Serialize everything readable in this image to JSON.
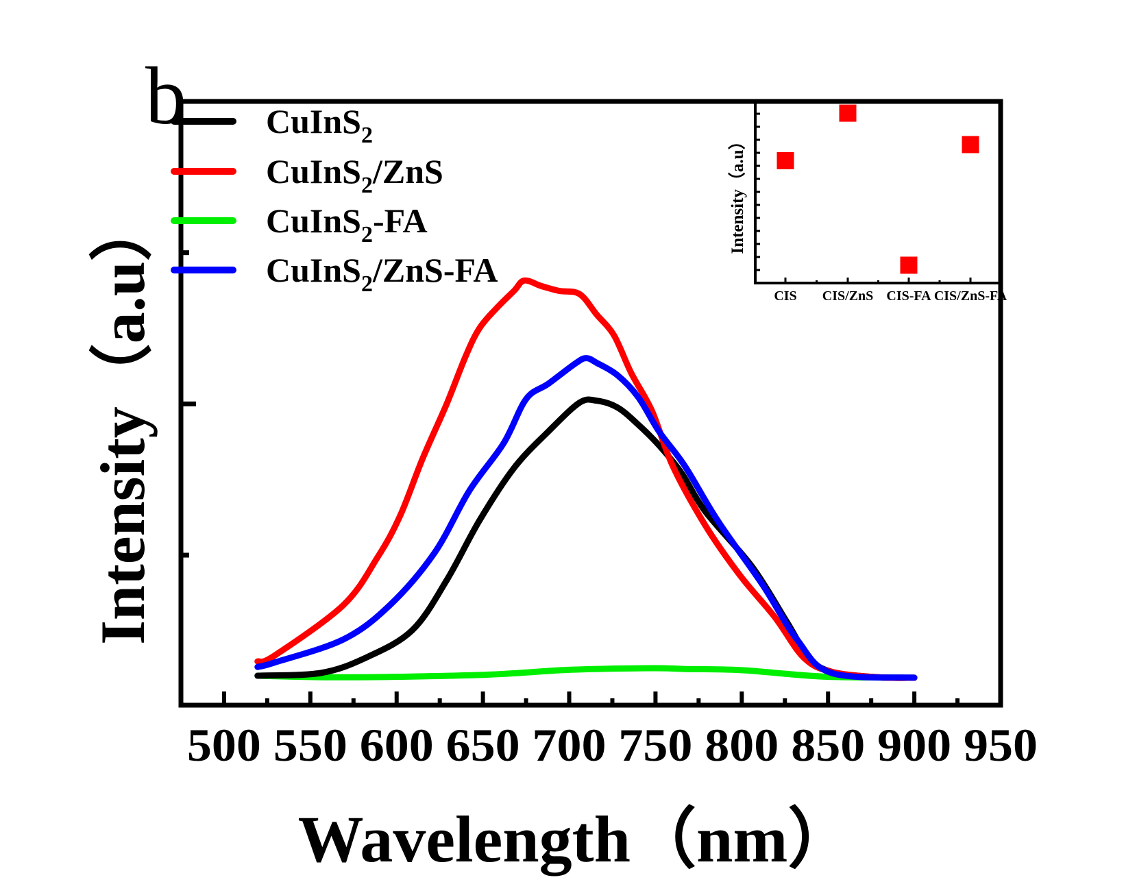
{
  "panel_label": "b",
  "chart_data": [
    {
      "id": "main",
      "type": "line",
      "title": "",
      "xlabel": "Wavelength（nm）",
      "ylabel": "Intensity（a.u）",
      "xlim": [
        475,
        950
      ],
      "ylim": [
        -6.7,
        145
      ],
      "xticks_major": [
        500,
        550,
        600,
        650,
        700,
        750,
        800,
        850,
        900,
        950
      ],
      "xtick_labels": [
        "500",
        "550",
        "600",
        "650",
        "700",
        "750",
        "800",
        "850",
        "900",
        "950"
      ],
      "xticks_minor": [
        525,
        575,
        625,
        675,
        725,
        775,
        825,
        875,
        925
      ],
      "yticks_major": [
        69
      ],
      "yticks_minor": [
        31,
        107
      ],
      "ytick_labels": [],
      "grid": false,
      "legend_position": "top-left",
      "series": [
        {
          "name": "CuInS2",
          "label_base": "CuInS",
          "label_sub": "2",
          "label_suffix": "",
          "color": "#000000",
          "x": [
            519.4,
            556,
            582,
            609,
            629,
            648,
            668,
            688,
            706,
            716,
            728,
            740,
            752,
            765,
            779,
            806,
            826,
            839,
            852,
            879,
            900
          ],
          "y": [
            0.7,
            1.4,
            5.2,
            12.1,
            24.7,
            39.7,
            52.9,
            62.1,
            69.3,
            69.8,
            68.1,
            63.8,
            58.6,
            51.7,
            41.9,
            28.1,
            14.3,
            5.2,
            1.7,
            0.3,
            0.2
          ]
        },
        {
          "name": "CuInS2/ZnS",
          "label_base": "CuInS",
          "label_sub": "2",
          "label_suffix": "/ZnS",
          "color": "#ff0000",
          "x": [
            519.4,
            529,
            569,
            589,
            602,
            615,
            629,
            640,
            648,
            658,
            668,
            674,
            684,
            694,
            706,
            716,
            726,
            736,
            748,
            760,
            779,
            799,
            819,
            836,
            852,
            879,
            900
          ],
          "y": [
            4.3,
            5.7,
            18.4,
            30.5,
            40.9,
            55.2,
            69.0,
            81.0,
            88.0,
            93.1,
            97.4,
            100.0,
            98.6,
            97.4,
            96.6,
            91.4,
            86.2,
            76.7,
            67.2,
            53.4,
            38.4,
            25.9,
            15.5,
            5.2,
            1.7,
            0.3,
            0.2
          ]
        },
        {
          "name": "CuInS2-FA",
          "label_base": "CuInS",
          "label_sub": "2",
          "label_suffix": "-FA",
          "color": "#00ee00",
          "x": [
            519.4,
            569,
            648,
            701,
            748,
            767,
            800,
            847,
            900
          ],
          "y": [
            0.7,
            0.3,
            0.9,
            2.2,
            2.6,
            2.4,
            2.1,
            0.5,
            0.2
          ]
        },
        {
          "name": "CuInS2/ZnS-FA",
          "label_base": "CuInS",
          "label_sub": "2",
          "label_suffix": "/ZnS-FA",
          "color": "#0000ff",
          "x": [
            519.4,
            529,
            569,
            596,
            622,
            642,
            662,
            675,
            688,
            704,
            710,
            716,
            728,
            740,
            752,
            767,
            786,
            812,
            832,
            852,
            900
          ],
          "y": [
            2.9,
            4.0,
            9.8,
            18.4,
            31.6,
            47.1,
            59.1,
            70.2,
            74.1,
            79.3,
            80.5,
            79.3,
            76.2,
            70.7,
            62.1,
            53.4,
            39.7,
            23.6,
            9.8,
            1.4,
            0.2
          ]
        }
      ]
    },
    {
      "id": "inset",
      "type": "scatter",
      "title": "",
      "xlabel": "",
      "ylabel": "Intensity（a.u）",
      "categories": [
        "CIS",
        "CIS/ZnS",
        "CIS-FA",
        "CIS/ZnS-FA"
      ],
      "values": [
        72,
        100,
        10.5,
        81.5
      ],
      "ylim": [
        0,
        106.9
      ],
      "marker": "square",
      "color": "#ff0000",
      "grid": false
    }
  ]
}
